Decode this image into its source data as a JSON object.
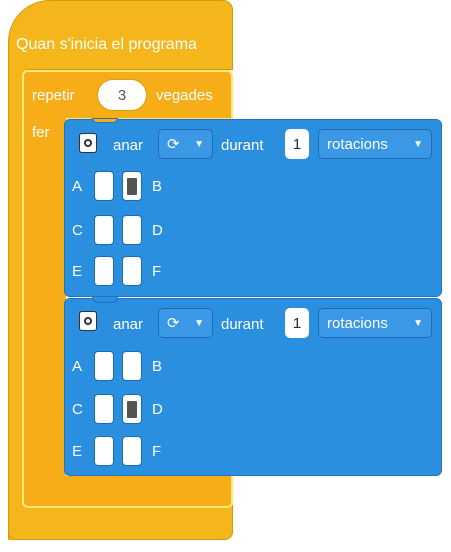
{
  "start_block": {
    "label": "Quan s'inicia el programa"
  },
  "repeat_block": {
    "prefix": "repetir",
    "count": "3",
    "suffix": "vegades",
    "do_label": "fer"
  },
  "move_blocks": [
    {
      "action": "anar",
      "direction_icon": "rotate-clockwise-icon",
      "direction_symbol": "⟳",
      "for_label": "durant",
      "amount": "1",
      "unit": "rotacions",
      "ports": [
        {
          "left": "A",
          "right": "B",
          "left_on": false,
          "right_on": true
        },
        {
          "left": "C",
          "right": "D",
          "left_on": false,
          "right_on": false
        },
        {
          "left": "E",
          "right": "F",
          "left_on": false,
          "right_on": false
        }
      ]
    },
    {
      "action": "anar",
      "direction_icon": "rotate-clockwise-icon",
      "direction_symbol": "⟳",
      "for_label": "durant",
      "amount": "1",
      "unit": "rotacions",
      "ports": [
        {
          "left": "A",
          "right": "B",
          "left_on": false,
          "right_on": false
        },
        {
          "left": "C",
          "right": "D",
          "left_on": false,
          "right_on": true
        },
        {
          "left": "E",
          "right": "F",
          "left_on": false,
          "right_on": false
        }
      ]
    }
  ],
  "colors": {
    "event_block": "#f5b61c",
    "control_block": "#f7ad17",
    "control_highlight": "#ffe873",
    "motion_block": "#2b8fe0"
  }
}
